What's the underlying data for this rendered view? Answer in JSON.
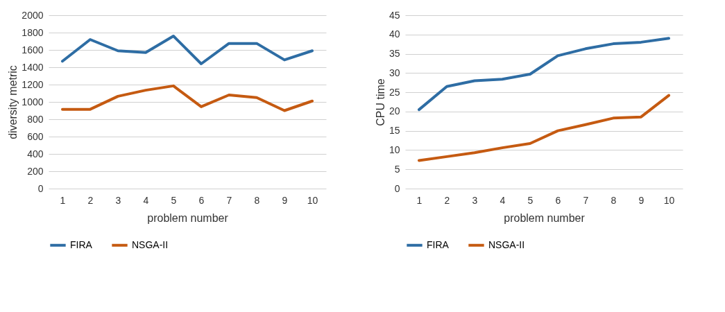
{
  "chart_data": [
    {
      "type": "line",
      "xlabel": "problem number",
      "ylabel": "diversity metric",
      "categories": [
        "1",
        "2",
        "3",
        "4",
        "5",
        "6",
        "7",
        "8",
        "9",
        "10"
      ],
      "series": [
        {
          "name": "FIRA",
          "color": "#2e6da4",
          "values": [
            1470,
            1720,
            1590,
            1570,
            1760,
            1440,
            1675,
            1675,
            1485,
            1590
          ]
        },
        {
          "name": "NSGA-II",
          "color": "#c55a11",
          "values": [
            915,
            915,
            1065,
            1135,
            1185,
            945,
            1080,
            1050,
            900,
            1010
          ]
        }
      ],
      "ylim": [
        0,
        2000
      ],
      "yticks": [
        0,
        200,
        400,
        600,
        800,
        1000,
        1200,
        1400,
        1600,
        1800,
        2000
      ],
      "grid": "y",
      "legend": "bottom",
      "marker": "none",
      "line_style": "solid"
    },
    {
      "type": "line",
      "xlabel": "problem number",
      "ylabel": "CPU time",
      "categories": [
        "1",
        "2",
        "3",
        "4",
        "5",
        "6",
        "7",
        "8",
        "9",
        "10"
      ],
      "series": [
        {
          "name": "FIRA",
          "color": "#2e6da4",
          "values": [
            20.5,
            26.5,
            28,
            28.4,
            29.7,
            34.5,
            36.3,
            37.6,
            38,
            39
          ]
        },
        {
          "name": "NSGA-II",
          "color": "#c55a11",
          "values": [
            7.3,
            8.3,
            9.3,
            10.6,
            11.7,
            15,
            16.6,
            18.3,
            18.6,
            24.2
          ]
        }
      ],
      "ylim": [
        0,
        45
      ],
      "yticks": [
        0,
        5,
        10,
        15,
        20,
        25,
        30,
        35,
        40,
        45
      ],
      "grid": "y",
      "legend": "bottom",
      "marker": "none",
      "line_style": "solid"
    }
  ]
}
